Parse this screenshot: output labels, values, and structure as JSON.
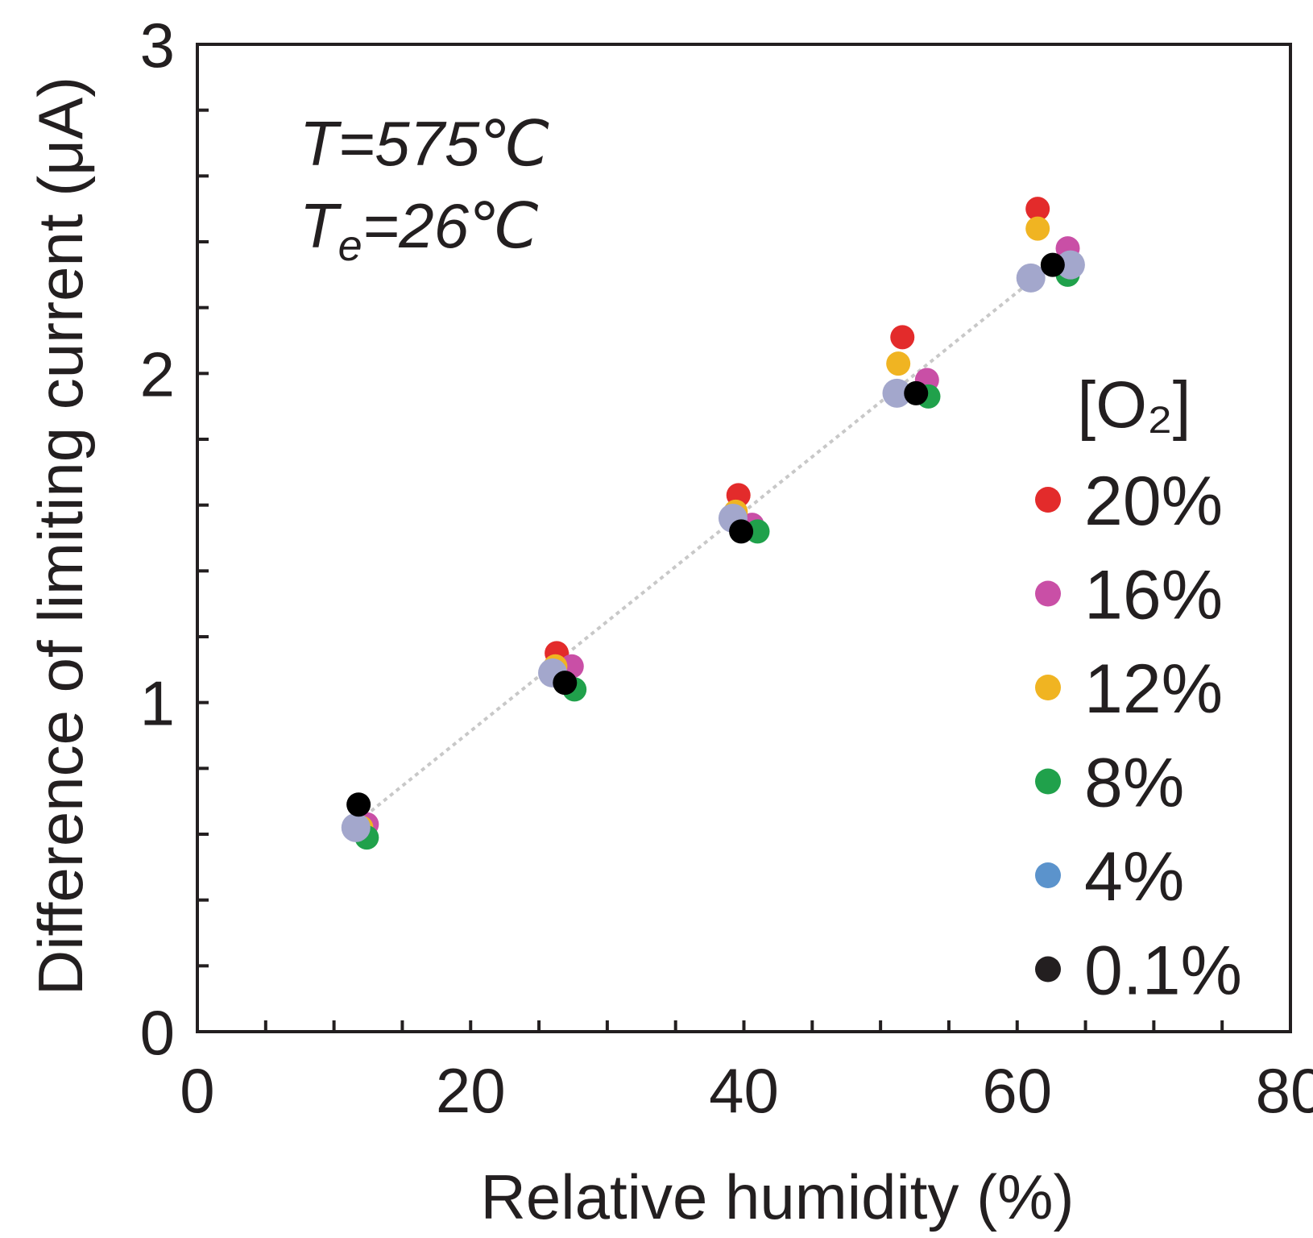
{
  "chart_data": {
    "type": "scatter",
    "title": "",
    "xlabel": "Relative humidity (%)",
    "ylabel": "Difference of limiting current (μA)",
    "xlim": [
      0,
      80
    ],
    "ylim": [
      0,
      3
    ],
    "x_ticks": [
      "0",
      "20",
      "40",
      "60",
      "80"
    ],
    "y_ticks": [
      "0",
      "1",
      "2",
      "3"
    ],
    "x_minor_step": 5,
    "y_minor_step": 0.2,
    "grid": false,
    "legend_position": "right",
    "legend_title": "[O₂]",
    "annotations": [
      "T=575℃",
      "Te=26℃"
    ],
    "trendline": {
      "style": "dashed",
      "color": "#c8c8c8",
      "points": [
        [
          11.8,
          0.64
        ],
        [
          62.5,
          2.33
        ]
      ]
    },
    "series": [
      {
        "name": "20%",
        "color": "#e32b2b",
        "points": [
          [
            12.2,
            0.62
          ],
          [
            26.3,
            1.15
          ],
          [
            39.6,
            1.63
          ],
          [
            51.6,
            2.11
          ],
          [
            61.5,
            2.5
          ]
        ]
      },
      {
        "name": "16%",
        "color": "#c94fa6",
        "points": [
          [
            12.4,
            0.63
          ],
          [
            27.4,
            1.11
          ],
          [
            40.6,
            1.54
          ],
          [
            53.4,
            1.98
          ],
          [
            63.7,
            2.38
          ]
        ]
      },
      {
        "name": "12%",
        "color": "#f0b422",
        "points": [
          [
            12.0,
            0.62
          ],
          [
            26.2,
            1.11
          ],
          [
            39.4,
            1.58
          ],
          [
            51.3,
            2.03
          ],
          [
            61.5,
            2.44
          ]
        ]
      },
      {
        "name": "8%",
        "color": "#20a14b",
        "points": [
          [
            12.4,
            0.59
          ],
          [
            27.6,
            1.04
          ],
          [
            41.0,
            1.52
          ],
          [
            53.5,
            1.93
          ],
          [
            63.7,
            2.3
          ]
        ]
      },
      {
        "name": "4%",
        "color": "#5b93cc",
        "marker_color": "#a3a7cc",
        "points": [
          [
            11.6,
            0.62
          ],
          [
            26.0,
            1.09
          ],
          [
            39.2,
            1.56
          ],
          [
            51.2,
            1.94
          ],
          [
            61.0,
            2.29
          ],
          [
            63.9,
            2.33
          ]
        ]
      },
      {
        "name": "0.1%",
        "color": "#231f20",
        "marker_color": "#000000",
        "points": [
          [
            11.8,
            0.69
          ],
          [
            26.9,
            1.06
          ],
          [
            39.8,
            1.52
          ],
          [
            52.6,
            1.94
          ],
          [
            62.6,
            2.33
          ]
        ]
      }
    ]
  }
}
